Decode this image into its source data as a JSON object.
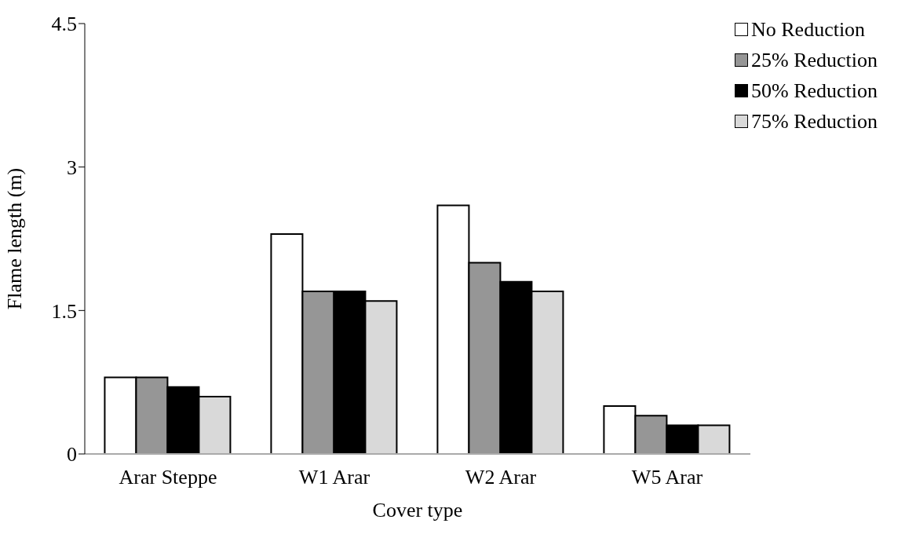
{
  "chart_data": {
    "type": "bar",
    "xlabel": "Cover type",
    "ylabel": "Flame length (m)",
    "categories": [
      "Arar Steppe",
      "W1 Arar",
      "W2  Arar",
      "W5 Arar"
    ],
    "series": [
      {
        "name": "No Reduction",
        "color": "#ffffff",
        "values": [
          0.8,
          2.3,
          2.6,
          0.5
        ]
      },
      {
        "name": "25% Reduction",
        "color": "#969696",
        "values": [
          0.8,
          1.7,
          2.0,
          0.4
        ]
      },
      {
        "name": "50% Reduction",
        "color": "#000000",
        "values": [
          0.7,
          1.7,
          1.8,
          0.3
        ]
      },
      {
        "name": "75% Reduction",
        "color": "#d9d9d9",
        "values": [
          0.6,
          1.6,
          1.7,
          0.3
        ]
      }
    ],
    "ylim": [
      0,
      4.5
    ],
    "yticks": [
      0,
      1.5,
      3,
      4.5
    ],
    "grid": false,
    "legend": "top right"
  }
}
